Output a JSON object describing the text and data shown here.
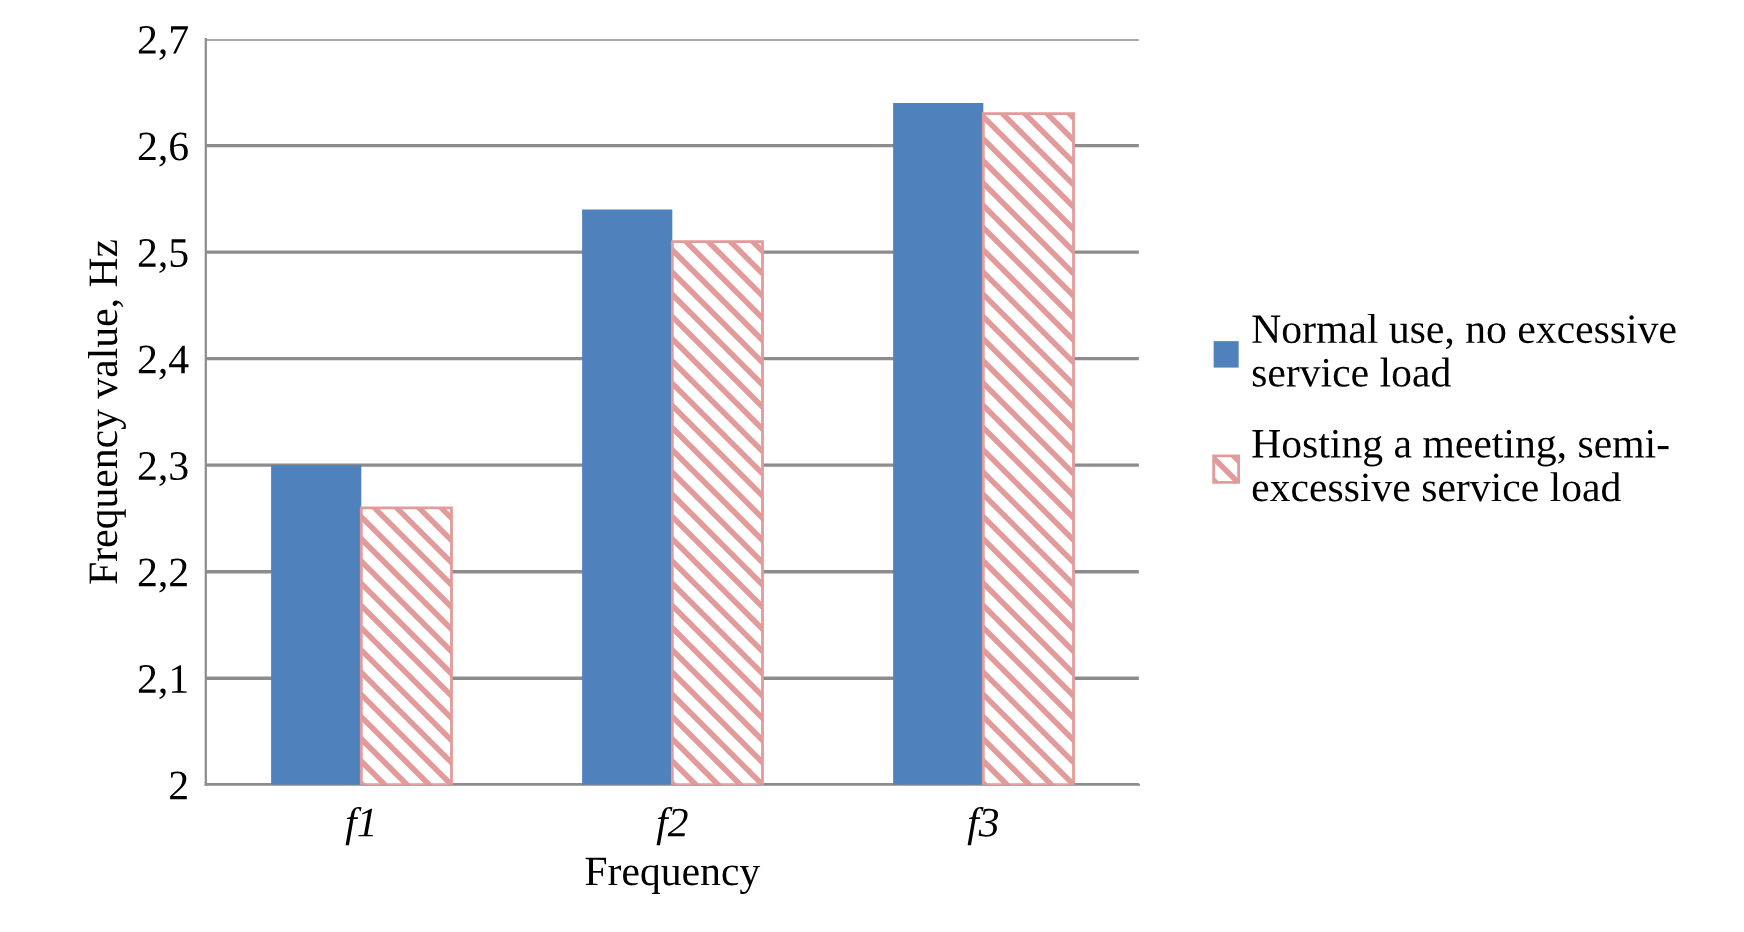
{
  "chart_data": {
    "type": "bar",
    "xlabel": "Frequency",
    "ylabel": "Frequency value, Hz",
    "categories": [
      "f1",
      "f2",
      "f3"
    ],
    "series": [
      {
        "name": "Normal use, no excessive\nservice load",
        "color": "#4f81bd",
        "values": [
          2.3,
          2.54,
          2.64
        ]
      },
      {
        "name": "Hosting a meeting, semi-\nexcessive service load",
        "color": "#e39a9a",
        "values": [
          2.26,
          2.51,
          2.63
        ]
      }
    ],
    "ylim": [
      2,
      2.7
    ],
    "yticks": [
      {
        "value": 2,
        "label": "2"
      },
      {
        "value": 2.1,
        "label": "2,1"
      },
      {
        "value": 2.2,
        "label": "2,2"
      },
      {
        "value": 2.3,
        "label": "2,3"
      },
      {
        "value": 2.4,
        "label": "2,4"
      },
      {
        "value": 2.5,
        "label": "2,5"
      },
      {
        "value": 2.6,
        "label": "2,6"
      },
      {
        "value": 2.7,
        "label": "2,7"
      }
    ],
    "grid": "y",
    "legend": "right"
  }
}
